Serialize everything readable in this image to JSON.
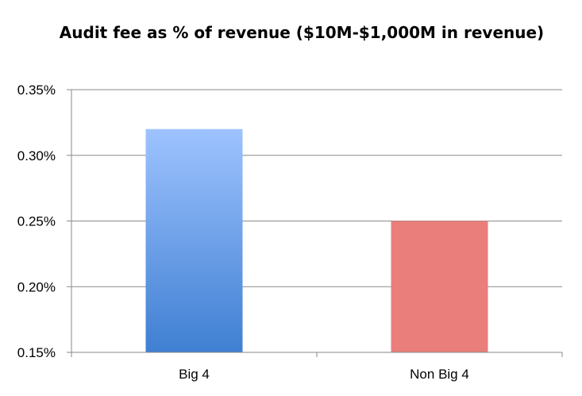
{
  "chart_data": {
    "type": "bar",
    "title": "Audit fee as % of revenue ($10M-$1,000M in revenue)",
    "categories": [
      "Big 4",
      "Non Big 4"
    ],
    "values": [
      0.32,
      0.25
    ],
    "value_unit": "%",
    "ylim": [
      0.15,
      0.35
    ],
    "yticks": [
      "0.15%",
      "0.20%",
      "0.25%",
      "0.30%",
      "0.35%"
    ],
    "xlabel": "",
    "ylabel": "",
    "grid": true,
    "legend": "none",
    "colors": {
      "Big 4": {
        "top": "#9ec3ff",
        "bottom": "#3f7fd2"
      },
      "Non Big 4": "#e97e7a"
    }
  }
}
